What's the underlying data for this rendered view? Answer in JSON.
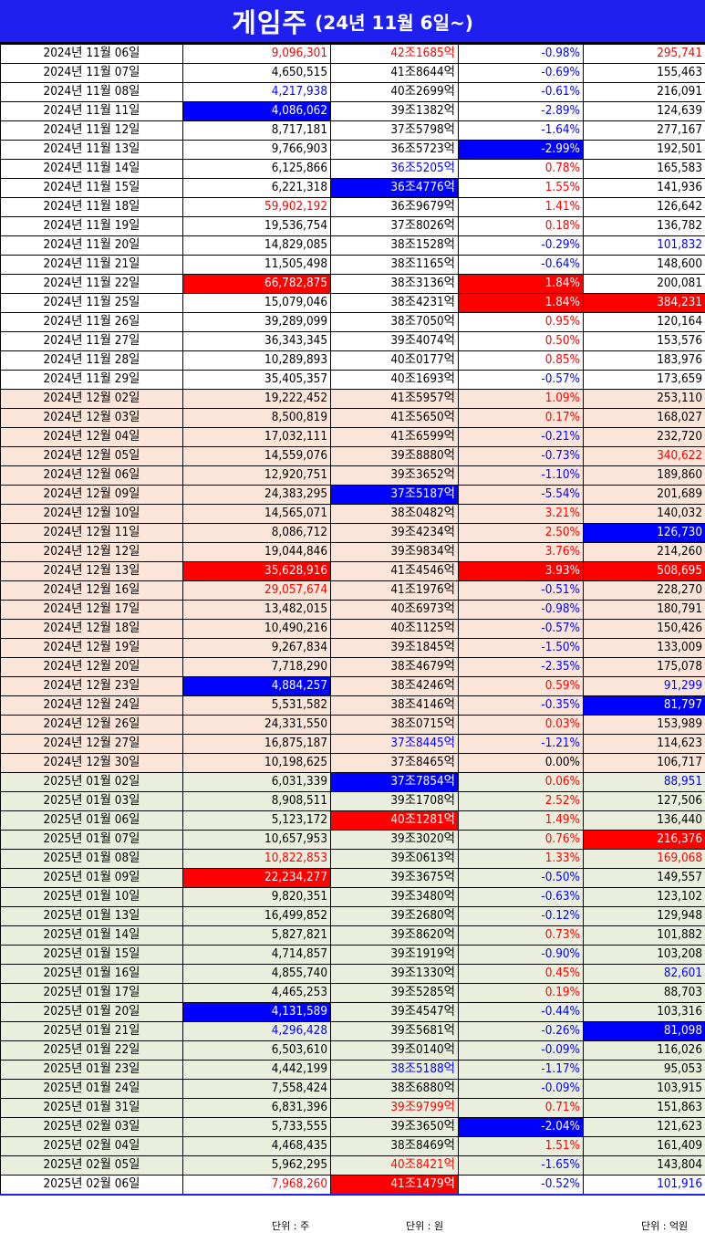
{
  "title": {
    "main": "게임주",
    "sub": "(24년 11월 6일~)"
  },
  "units": [
    "단위 : 주",
    "단위 : 원",
    "단위 : 억원"
  ],
  "rows": [
    {
      "date": "2024년 11월 06일",
      "volume": "9,096,301",
      "mcap": "42조1685억",
      "change": "-0.98%",
      "value": "295,741",
      "group": 1,
      "style": [
        "",
        "red",
        "red",
        "blue",
        "red"
      ]
    },
    {
      "date": "2024년 11월 07일",
      "volume": "4,650,515",
      "mcap": "41조8644억",
      "change": "-0.69%",
      "value": "155,463",
      "group": 1,
      "style": [
        "",
        "",
        "",
        "blue",
        ""
      ]
    },
    {
      "date": "2024년 11월 08일",
      "volume": "4,217,938",
      "mcap": "40조2699억",
      "change": "-0.61%",
      "value": "216,091",
      "group": 1,
      "style": [
        "",
        "blue",
        "",
        "blue",
        ""
      ]
    },
    {
      "date": "2024년 11월 11일",
      "volume": "4,086,062",
      "mcap": "39조1382억",
      "change": "-2.89%",
      "value": "124,639",
      "group": 1,
      "style": [
        "",
        "bgblue",
        "",
        "blue",
        ""
      ]
    },
    {
      "date": "2024년 11월 12일",
      "volume": "8,717,181",
      "mcap": "37조5798억",
      "change": "-1.64%",
      "value": "277,167",
      "group": 1,
      "style": [
        "",
        "",
        "",
        "blue",
        ""
      ]
    },
    {
      "date": "2024년 11월 13일",
      "volume": "9,766,903",
      "mcap": "36조5723억",
      "change": "-2.99%",
      "value": "192,501",
      "group": 1,
      "style": [
        "",
        "",
        "",
        "bgblue",
        ""
      ]
    },
    {
      "date": "2024년 11월 14일",
      "volume": "6,125,866",
      "mcap": "36조5205억",
      "change": "0.78%",
      "value": "165,583",
      "group": 1,
      "style": [
        "",
        "",
        "blue",
        "red",
        ""
      ]
    },
    {
      "date": "2024년 11월 15일",
      "volume": "6,221,318",
      "mcap": "36조4776억",
      "change": "1.55%",
      "value": "141,936",
      "group": 1,
      "style": [
        "",
        "",
        "bgblue",
        "red",
        ""
      ]
    },
    {
      "date": "2024년 11월 18일",
      "volume": "59,902,192",
      "mcap": "36조9679억",
      "change": "1.41%",
      "value": "126,642",
      "group": 1,
      "style": [
        "",
        "red",
        "",
        "red",
        ""
      ]
    },
    {
      "date": "2024년 11월 19일",
      "volume": "19,536,754",
      "mcap": "37조8026억",
      "change": "0.18%",
      "value": "136,782",
      "group": 1,
      "style": [
        "",
        "",
        "",
        "red",
        ""
      ]
    },
    {
      "date": "2024년 11월 20일",
      "volume": "14,829,085",
      "mcap": "38조1528억",
      "change": "-0.29%",
      "value": "101,832",
      "group": 1,
      "style": [
        "",
        "",
        "",
        "blue",
        "blue"
      ]
    },
    {
      "date": "2024년 11월 21일",
      "volume": "11,505,498",
      "mcap": "38조1165억",
      "change": "-0.64%",
      "value": "148,600",
      "group": 1,
      "style": [
        "",
        "",
        "",
        "blue",
        ""
      ]
    },
    {
      "date": "2024년 11월 22일",
      "volume": "66,782,875",
      "mcap": "38조3136억",
      "change": "1.84%",
      "value": "200,081",
      "group": 1,
      "style": [
        "",
        "bgred",
        "",
        "bgred",
        ""
      ]
    },
    {
      "date": "2024년 11월 25일",
      "volume": "15,079,046",
      "mcap": "38조4231억",
      "change": "1.84%",
      "value": "384,231",
      "group": 1,
      "style": [
        "",
        "",
        "",
        "bgred",
        "bgred"
      ]
    },
    {
      "date": "2024년 11월 26일",
      "volume": "39,289,099",
      "mcap": "38조7050억",
      "change": "0.95%",
      "value": "120,164",
      "group": 1,
      "style": [
        "",
        "",
        "",
        "red",
        ""
      ]
    },
    {
      "date": "2024년 11월 27일",
      "volume": "36,343,345",
      "mcap": "39조4074억",
      "change": "0.50%",
      "value": "153,576",
      "group": 1,
      "style": [
        "",
        "",
        "",
        "red",
        ""
      ]
    },
    {
      "date": "2024년 11월 28일",
      "volume": "10,289,893",
      "mcap": "40조0177억",
      "change": "0.85%",
      "value": "183,976",
      "group": 1,
      "style": [
        "",
        "",
        "",
        "red",
        ""
      ]
    },
    {
      "date": "2024년 11월 29일",
      "volume": "35,405,357",
      "mcap": "40조1693억",
      "change": "-0.57%",
      "value": "173,659",
      "group": 1,
      "style": [
        "",
        "",
        "",
        "blue",
        ""
      ]
    },
    {
      "date": "2024년 12월 02일",
      "volume": "19,222,452",
      "mcap": "41조5957억",
      "change": "1.09%",
      "value": "253,110",
      "group": 2,
      "style": [
        "",
        "",
        "",
        "red",
        ""
      ]
    },
    {
      "date": "2024년 12월 03일",
      "volume": "8,500,819",
      "mcap": "41조5650억",
      "change": "0.17%",
      "value": "168,027",
      "group": 2,
      "style": [
        "",
        "",
        "",
        "red",
        ""
      ]
    },
    {
      "date": "2024년 12월 04일",
      "volume": "17,032,111",
      "mcap": "41조6599억",
      "change": "-0.21%",
      "value": "232,720",
      "group": 2,
      "style": [
        "",
        "",
        "",
        "blue",
        ""
      ]
    },
    {
      "date": "2024년 12월 05일",
      "volume": "14,559,076",
      "mcap": "39조8880억",
      "change": "-0.73%",
      "value": "340,622",
      "group": 2,
      "style": [
        "",
        "",
        "",
        "blue",
        "red"
      ]
    },
    {
      "date": "2024년 12월 06일",
      "volume": "12,920,751",
      "mcap": "39조3652억",
      "change": "-1.10%",
      "value": "189,860",
      "group": 2,
      "style": [
        "",
        "",
        "",
        "blue",
        ""
      ]
    },
    {
      "date": "2024년 12월 09일",
      "volume": "24,383,295",
      "mcap": "37조5187억",
      "change": "-5.54%",
      "value": "201,689",
      "group": 2,
      "style": [
        "",
        "",
        "bgblue",
        "blue",
        ""
      ]
    },
    {
      "date": "2024년 12월 10일",
      "volume": "14,565,071",
      "mcap": "38조0482억",
      "change": "3.21%",
      "value": "140,032",
      "group": 2,
      "style": [
        "",
        "",
        "",
        "red",
        ""
      ]
    },
    {
      "date": "2024년 12월 11일",
      "volume": "8,086,712",
      "mcap": "39조4234억",
      "change": "2.50%",
      "value": "126,730",
      "group": 2,
      "style": [
        "",
        "",
        "",
        "red",
        "bgblue"
      ]
    },
    {
      "date": "2024년 12월 12일",
      "volume": "19,044,846",
      "mcap": "39조9834억",
      "change": "3.76%",
      "value": "214,260",
      "group": 2,
      "style": [
        "",
        "",
        "",
        "red",
        ""
      ]
    },
    {
      "date": "2024년 12월 13일",
      "volume": "35,628,916",
      "mcap": "41조4546억",
      "change": "3.93%",
      "value": "508,695",
      "group": 2,
      "style": [
        "",
        "bgred",
        "",
        "bgred",
        "bgred"
      ]
    },
    {
      "date": "2024년 12월 16일",
      "volume": "29,057,674",
      "mcap": "41조1976억",
      "change": "-0.51%",
      "value": "228,270",
      "group": 2,
      "style": [
        "",
        "red",
        "",
        "blue",
        ""
      ]
    },
    {
      "date": "2024년 12월 17일",
      "volume": "13,482,015",
      "mcap": "40조6973억",
      "change": "-0.98%",
      "value": "180,791",
      "group": 2,
      "style": [
        "",
        "",
        "",
        "blue",
        ""
      ]
    },
    {
      "date": "2024년 12월 18일",
      "volume": "10,490,216",
      "mcap": "40조1125억",
      "change": "-0.57%",
      "value": "150,426",
      "group": 2,
      "style": [
        "",
        "",
        "",
        "blue",
        ""
      ]
    },
    {
      "date": "2024년 12월 19일",
      "volume": "9,267,834",
      "mcap": "39조1845억",
      "change": "-1.50%",
      "value": "133,009",
      "group": 2,
      "style": [
        "",
        "",
        "",
        "blue",
        ""
      ]
    },
    {
      "date": "2024년 12월 20일",
      "volume": "7,718,290",
      "mcap": "38조4679억",
      "change": "-2.35%",
      "value": "175,078",
      "group": 2,
      "style": [
        "",
        "",
        "",
        "blue",
        ""
      ]
    },
    {
      "date": "2024년 12월 23일",
      "volume": "4,884,257",
      "mcap": "38조4246억",
      "change": "0.59%",
      "value": "91,299",
      "group": 2,
      "style": [
        "",
        "bgblue",
        "",
        "red",
        "blue"
      ]
    },
    {
      "date": "2024년 12월 24일",
      "volume": "5,531,582",
      "mcap": "38조4146억",
      "change": "-0.35%",
      "value": "81,797",
      "group": 2,
      "style": [
        "",
        "",
        "",
        "blue",
        "bgblue"
      ]
    },
    {
      "date": "2024년 12월 26일",
      "volume": "24,331,550",
      "mcap": "38조0715억",
      "change": "0.03%",
      "value": "153,989",
      "group": 2,
      "style": [
        "",
        "",
        "",
        "red",
        ""
      ]
    },
    {
      "date": "2024년 12월 27일",
      "volume": "16,875,187",
      "mcap": "37조8445억",
      "change": "-1.21%",
      "value": "114,623",
      "group": 2,
      "style": [
        "",
        "",
        "blue",
        "blue",
        ""
      ]
    },
    {
      "date": "2024년 12월 30일",
      "volume": "10,198,625",
      "mcap": "37조8465억",
      "change": "0.00%",
      "value": "106,717",
      "group": 2,
      "style": [
        "",
        "",
        "",
        "",
        ""
      ]
    },
    {
      "date": "2025년 01월 02일",
      "volume": "6,031,339",
      "mcap": "37조7854억",
      "change": "0.06%",
      "value": "88,951",
      "group": 3,
      "style": [
        "",
        "",
        "bgblue",
        "red",
        "blue"
      ]
    },
    {
      "date": "2025년 01월 03일",
      "volume": "8,908,511",
      "mcap": "39조1708억",
      "change": "2.52%",
      "value": "127,506",
      "group": 3,
      "style": [
        "",
        "",
        "",
        "red",
        ""
      ]
    },
    {
      "date": "2025년 01월 06일",
      "volume": "5,123,172",
      "mcap": "40조1281억",
      "change": "1.49%",
      "value": "136,440",
      "group": 3,
      "style": [
        "",
        "",
        "bgred",
        "red",
        ""
      ]
    },
    {
      "date": "2025년 01월 07일",
      "volume": "10,657,953",
      "mcap": "39조3020억",
      "change": "0.76%",
      "value": "216,376",
      "group": 3,
      "style": [
        "",
        "",
        "",
        "red",
        "bgred"
      ]
    },
    {
      "date": "2025년 01월 08일",
      "volume": "10,822,853",
      "mcap": "39조0613억",
      "change": "1.33%",
      "value": "169,068",
      "group": 3,
      "style": [
        "",
        "red",
        "",
        "red",
        "red"
      ]
    },
    {
      "date": "2025년 01월 09일",
      "volume": "22,234,277",
      "mcap": "39조3675억",
      "change": "-0.50%",
      "value": "149,557",
      "group": 3,
      "style": [
        "",
        "bgred",
        "",
        "blue",
        ""
      ]
    },
    {
      "date": "2025년 01월 10일",
      "volume": "9,820,351",
      "mcap": "39조3480억",
      "change": "-0.63%",
      "value": "123,102",
      "group": 3,
      "style": [
        "",
        "",
        "",
        "blue",
        ""
      ]
    },
    {
      "date": "2025년 01월 13일",
      "volume": "16,499,852",
      "mcap": "39조2680억",
      "change": "-0.12%",
      "value": "129,948",
      "group": 3,
      "style": [
        "",
        "",
        "",
        "blue",
        ""
      ]
    },
    {
      "date": "2025년 01월 14일",
      "volume": "5,827,821",
      "mcap": "39조8620억",
      "change": "0.73%",
      "value": "101,882",
      "group": 3,
      "style": [
        "",
        "",
        "",
        "red",
        ""
      ]
    },
    {
      "date": "2025년 01월 15일",
      "volume": "4,714,857",
      "mcap": "39조1919억",
      "change": "-0.90%",
      "value": "103,208",
      "group": 3,
      "style": [
        "",
        "",
        "",
        "blue",
        ""
      ]
    },
    {
      "date": "2025년 01월 16일",
      "volume": "4,855,740",
      "mcap": "39조1330억",
      "change": "0.45%",
      "value": "82,601",
      "group": 3,
      "style": [
        "",
        "",
        "",
        "red",
        "blue"
      ]
    },
    {
      "date": "2025년 01월 17일",
      "volume": "4,465,253",
      "mcap": "39조5285억",
      "change": "0.19%",
      "value": "88,703",
      "group": 3,
      "style": [
        "",
        "",
        "",
        "red",
        ""
      ]
    },
    {
      "date": "2025년 01월 20일",
      "volume": "4,131,589",
      "mcap": "39조4547억",
      "change": "-0.44%",
      "value": "103,316",
      "group": 3,
      "style": [
        "",
        "bgblue",
        "",
        "blue",
        ""
      ]
    },
    {
      "date": "2025년 01월 21일",
      "volume": "4,296,428",
      "mcap": "39조5681억",
      "change": "-0.26%",
      "value": "81,098",
      "group": 3,
      "style": [
        "",
        "blue",
        "",
        "blue",
        "bgblue"
      ]
    },
    {
      "date": "2025년 01월 22일",
      "volume": "6,503,610",
      "mcap": "39조0140억",
      "change": "-0.09%",
      "value": "116,026",
      "group": 3,
      "style": [
        "",
        "",
        "",
        "blue",
        ""
      ]
    },
    {
      "date": "2025년 01월 23일",
      "volume": "4,442,199",
      "mcap": "38조5188억",
      "change": "-1.17%",
      "value": "95,053",
      "group": 3,
      "style": [
        "",
        "",
        "blue",
        "blue",
        ""
      ]
    },
    {
      "date": "2025년 01월 24일",
      "volume": "7,558,424",
      "mcap": "38조6880억",
      "change": "-0.09%",
      "value": "103,915",
      "group": 3,
      "style": [
        "",
        "",
        "",
        "blue",
        ""
      ]
    },
    {
      "date": "2025년 01월 31일",
      "volume": "6,831,396",
      "mcap": "39조9799억",
      "change": "0.71%",
      "value": "151,863",
      "group": 3,
      "style": [
        "",
        "",
        "red",
        "red",
        ""
      ]
    },
    {
      "date": "2025년 02월 03일",
      "volume": "5,733,555",
      "mcap": "39조3650억",
      "change": "-2.04%",
      "value": "121,623",
      "group": 3,
      "style": [
        "",
        "",
        "",
        "bgblue",
        ""
      ]
    },
    {
      "date": "2025년 02월 04일",
      "volume": "4,468,435",
      "mcap": "38조8469억",
      "change": "1.51%",
      "value": "161,409",
      "group": 3,
      "style": [
        "",
        "",
        "",
        "red",
        ""
      ]
    },
    {
      "date": "2025년 02월 05일",
      "volume": "5,962,295",
      "mcap": "40조8421억",
      "change": "-1.65%",
      "value": "143,804",
      "group": 3,
      "style": [
        "",
        "",
        "red",
        "blue",
        ""
      ]
    },
    {
      "date": "2025년 02월 06일",
      "volume": "7,968,260",
      "mcap": "41조1479억",
      "change": "-0.52%",
      "value": "101,916",
      "group": 1,
      "style": [
        "",
        "red",
        "bgred",
        "blue",
        "blue"
      ]
    }
  ]
}
